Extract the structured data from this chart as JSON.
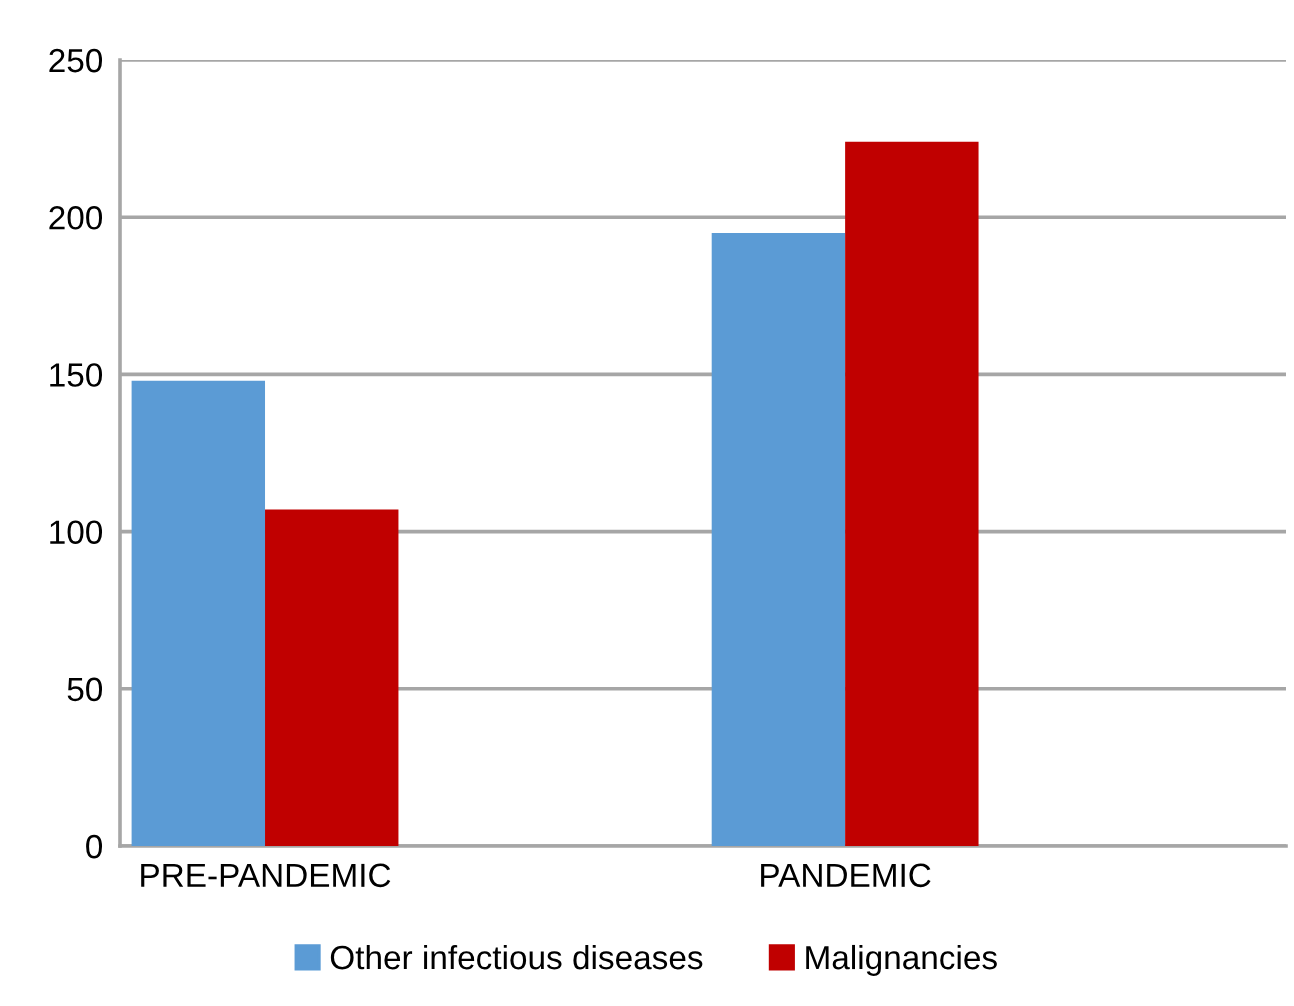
{
  "chart_data": {
    "type": "bar",
    "categories": [
      "PRE-PANDEMIC",
      "PANDEMIC"
    ],
    "series": [
      {
        "name": "Other infectious diseases",
        "color": "#5b9bd5",
        "values": [
          148,
          195
        ]
      },
      {
        "name": "Malignancies",
        "color": "#c00000",
        "values": [
          107,
          224
        ]
      }
    ],
    "ylim": [
      0,
      250
    ],
    "yticks": [
      0,
      50,
      100,
      150,
      200,
      250
    ],
    "grid": "y",
    "legend": "bottom"
  }
}
